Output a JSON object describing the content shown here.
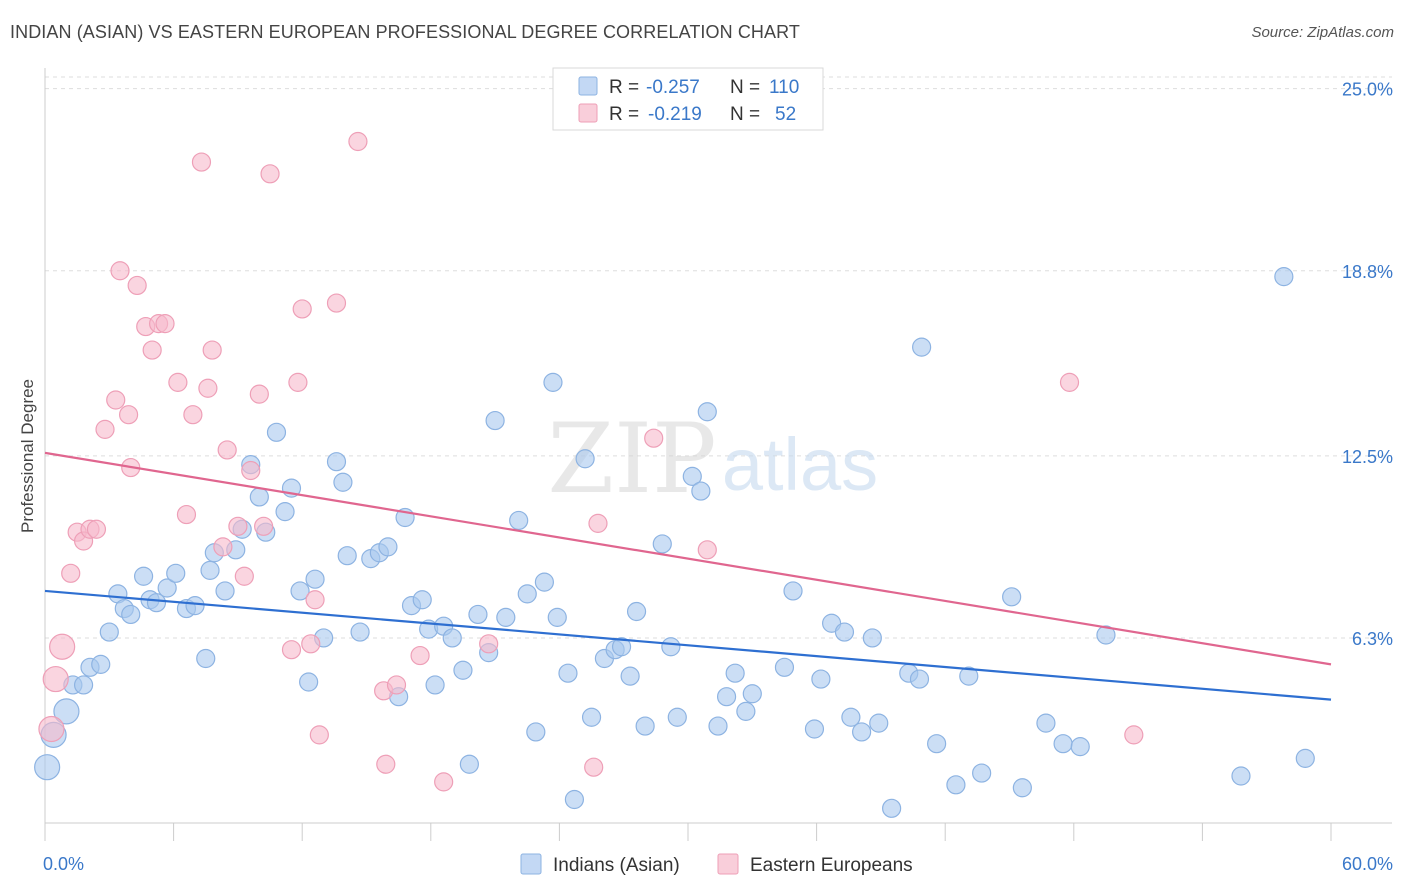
{
  "title": "INDIAN (ASIAN) VS EASTERN EUROPEAN PROFESSIONAL DEGREE CORRELATION CHART",
  "source": "Source: ZipAtlas.com",
  "watermark": {
    "zip": "ZIP",
    "atlas": "atlas"
  },
  "colors": {
    "blue_fill": "#a9c8ef",
    "blue_stroke": "#8db3e2",
    "blue_line": "#2e6fd1",
    "pink_fill": "#f6b9cb",
    "pink_stroke": "#ee9fb7",
    "pink_line": "#e0668f",
    "tick_label": "#3a78c9"
  },
  "legend": {
    "rows": [
      {
        "r_label": "R = ",
        "r_value": "-0.257",
        "n_label": "N = ",
        "n_value": "110",
        "series": "blue"
      },
      {
        "r_label": "R = ",
        "r_value": "-0.219",
        "n_label": "N = ",
        "n_value": "52",
        "series": "pink"
      }
    ]
  },
  "chart_data": {
    "type": "scatter",
    "title": "INDIAN (ASIAN) VS EASTERN EUROPEAN PROFESSIONAL DEGREE CORRELATION CHART",
    "xlabel": "",
    "ylabel": "Professional Degree",
    "xlim": [
      0,
      60
    ],
    "ylim": [
      0,
      25.6
    ],
    "x_tick_labels": [
      "0.0%",
      "60.0%"
    ],
    "y_ticks": [
      6.3,
      12.5,
      18.8,
      25.0
    ],
    "y_tick_labels": [
      "6.3%",
      "12.5%",
      "18.8%",
      "25.0%"
    ],
    "grid": true,
    "legend_position": "bottom-center",
    "series": [
      {
        "name": "Indians (Asian)",
        "color": "#a9c8ef",
        "trend": {
          "x": [
            0,
            60
          ],
          "y": [
            7.9,
            4.2
          ]
        },
        "points": [
          [
            0.1,
            1.9
          ],
          [
            0.4,
            3.0
          ],
          [
            1.0,
            3.8
          ],
          [
            1.3,
            4.7
          ],
          [
            1.8,
            4.7
          ],
          [
            2.1,
            5.3
          ],
          [
            2.6,
            5.4
          ],
          [
            3.0,
            6.5
          ],
          [
            3.4,
            7.8
          ],
          [
            3.7,
            7.3
          ],
          [
            4.0,
            7.1
          ],
          [
            4.6,
            8.4
          ],
          [
            4.9,
            7.6
          ],
          [
            5.2,
            7.5
          ],
          [
            5.7,
            8.0
          ],
          [
            6.1,
            8.5
          ],
          [
            6.6,
            7.3
          ],
          [
            7.0,
            7.4
          ],
          [
            7.5,
            5.6
          ],
          [
            7.7,
            8.6
          ],
          [
            7.9,
            9.2
          ],
          [
            8.4,
            7.9
          ],
          [
            8.9,
            9.3
          ],
          [
            9.2,
            10.0
          ],
          [
            9.6,
            12.2
          ],
          [
            10.0,
            11.1
          ],
          [
            10.3,
            9.9
          ],
          [
            10.8,
            13.3
          ],
          [
            11.2,
            10.6
          ],
          [
            11.5,
            11.4
          ],
          [
            11.9,
            7.9
          ],
          [
            12.3,
            4.8
          ],
          [
            12.6,
            8.3
          ],
          [
            13.0,
            6.3
          ],
          [
            13.6,
            12.3
          ],
          [
            13.9,
            11.6
          ],
          [
            14.1,
            9.1
          ],
          [
            14.7,
            6.5
          ],
          [
            15.2,
            9.0
          ],
          [
            15.6,
            9.2
          ],
          [
            16.0,
            9.4
          ],
          [
            16.5,
            4.3
          ],
          [
            16.8,
            10.4
          ],
          [
            17.1,
            7.4
          ],
          [
            17.6,
            7.6
          ],
          [
            17.9,
            6.6
          ],
          [
            18.2,
            4.7
          ],
          [
            18.6,
            6.7
          ],
          [
            19.0,
            6.3
          ],
          [
            19.5,
            5.2
          ],
          [
            19.8,
            2.0
          ],
          [
            20.2,
            7.1
          ],
          [
            20.7,
            5.8
          ],
          [
            21.0,
            13.7
          ],
          [
            21.5,
            7.0
          ],
          [
            22.1,
            10.3
          ],
          [
            22.5,
            7.8
          ],
          [
            22.9,
            3.1
          ],
          [
            23.3,
            8.2
          ],
          [
            23.7,
            15.0
          ],
          [
            23.9,
            7.0
          ],
          [
            24.4,
            5.1
          ],
          [
            24.7,
            0.8
          ],
          [
            25.2,
            12.4
          ],
          [
            25.5,
            3.6
          ],
          [
            26.1,
            5.6
          ],
          [
            26.6,
            5.9
          ],
          [
            26.9,
            6.0
          ],
          [
            27.3,
            5.0
          ],
          [
            27.6,
            7.2
          ],
          [
            28.0,
            3.3
          ],
          [
            28.8,
            9.5
          ],
          [
            29.2,
            6.0
          ],
          [
            29.5,
            3.6
          ],
          [
            30.2,
            11.8
          ],
          [
            30.6,
            11.3
          ],
          [
            30.9,
            14.0
          ],
          [
            31.4,
            3.3
          ],
          [
            31.8,
            4.3
          ],
          [
            32.2,
            5.1
          ],
          [
            32.7,
            3.8
          ],
          [
            33.0,
            4.4
          ],
          [
            34.5,
            5.3
          ],
          [
            34.9,
            7.9
          ],
          [
            35.9,
            3.2
          ],
          [
            36.2,
            4.9
          ],
          [
            36.7,
            6.8
          ],
          [
            37.3,
            6.5
          ],
          [
            37.6,
            3.6
          ],
          [
            38.1,
            3.1
          ],
          [
            38.6,
            6.3
          ],
          [
            38.9,
            3.4
          ],
          [
            39.5,
            0.5
          ],
          [
            40.3,
            5.1
          ],
          [
            40.8,
            4.9
          ],
          [
            40.9,
            16.2
          ],
          [
            41.6,
            2.7
          ],
          [
            42.5,
            1.3
          ],
          [
            43.1,
            5.0
          ],
          [
            43.7,
            1.7
          ],
          [
            45.1,
            7.7
          ],
          [
            45.6,
            1.2
          ],
          [
            46.7,
            3.4
          ],
          [
            47.5,
            2.7
          ],
          [
            48.3,
            2.6
          ],
          [
            49.5,
            6.4
          ],
          [
            55.8,
            1.6
          ],
          [
            57.8,
            18.6
          ],
          [
            58.8,
            2.2
          ]
        ]
      },
      {
        "name": "Eastern Europeans",
        "color": "#f6b9cb",
        "trend": {
          "x": [
            0,
            60
          ],
          "y": [
            12.6,
            5.4
          ]
        },
        "points": [
          [
            0.3,
            3.2
          ],
          [
            0.5,
            4.9
          ],
          [
            0.8,
            6.0
          ],
          [
            1.2,
            8.5
          ],
          [
            1.5,
            9.9
          ],
          [
            1.8,
            9.6
          ],
          [
            2.1,
            10.0
          ],
          [
            2.4,
            10.0
          ],
          [
            2.8,
            13.4
          ],
          [
            3.3,
            14.4
          ],
          [
            3.5,
            18.8
          ],
          [
            3.9,
            13.9
          ],
          [
            4.0,
            12.1
          ],
          [
            4.3,
            18.3
          ],
          [
            4.7,
            16.9
          ],
          [
            5.0,
            16.1
          ],
          [
            5.3,
            17.0
          ],
          [
            5.6,
            17.0
          ],
          [
            6.2,
            15.0
          ],
          [
            6.6,
            10.5
          ],
          [
            6.9,
            13.9
          ],
          [
            7.3,
            22.5
          ],
          [
            7.6,
            14.8
          ],
          [
            7.8,
            16.1
          ],
          [
            8.3,
            9.4
          ],
          [
            8.5,
            12.7
          ],
          [
            9.0,
            10.1
          ],
          [
            9.3,
            8.4
          ],
          [
            9.6,
            12.0
          ],
          [
            10.0,
            14.6
          ],
          [
            10.2,
            10.1
          ],
          [
            10.5,
            22.1
          ],
          [
            11.5,
            5.9
          ],
          [
            11.8,
            15.0
          ],
          [
            12.0,
            17.5
          ],
          [
            12.4,
            6.1
          ],
          [
            12.6,
            7.6
          ],
          [
            12.8,
            3.0
          ],
          [
            13.6,
            17.7
          ],
          [
            14.6,
            23.2
          ],
          [
            15.8,
            4.5
          ],
          [
            15.9,
            2.0
          ],
          [
            16.4,
            4.7
          ],
          [
            17.5,
            5.7
          ],
          [
            18.6,
            1.4
          ],
          [
            20.7,
            6.1
          ],
          [
            25.6,
            1.9
          ],
          [
            25.8,
            10.2
          ],
          [
            28.4,
            13.1
          ],
          [
            30.9,
            9.3
          ],
          [
            47.8,
            15.0
          ],
          [
            50.8,
            3.0
          ]
        ]
      }
    ]
  }
}
